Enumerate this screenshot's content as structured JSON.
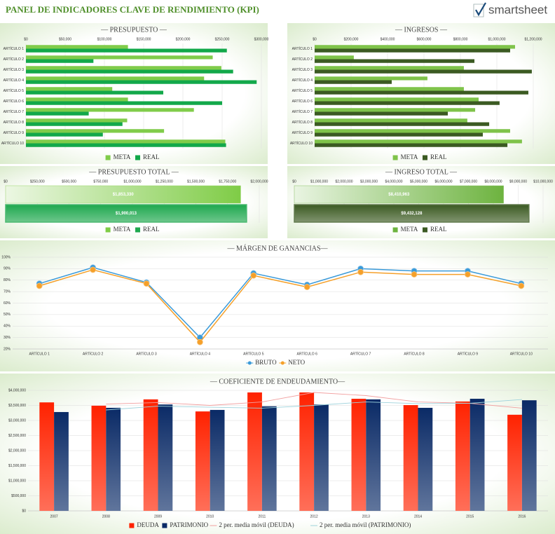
{
  "header": {
    "title": "PANEL DE INDICADORES CLAVE DE RENDIMIENTO (KPI)",
    "logo": "smartsheet"
  },
  "chart_data": [
    {
      "type": "bar",
      "orientation": "horizontal",
      "title": "— PRESUPUESTO —",
      "categories": [
        "ARTÍCULO 1",
        "ARTÍCULO 2",
        "ARTÍCULO 3",
        "ARTÍCULO 4",
        "ARTÍCULO 5",
        "ARTÍCULO 6",
        "ARTÍCULO 7",
        "ARTÍCULO 8",
        "ARTÍCULO 9",
        "ARTÍCULO 10"
      ],
      "series": [
        {
          "name": "META",
          "color": "#80cc4a",
          "values": [
            130000,
            238000,
            249000,
            227000,
            110000,
            130000,
            214000,
            129000,
            176000,
            254000
          ]
        },
        {
          "name": "REAL",
          "color": "#12a84a",
          "values": [
            256000,
            86000,
            264000,
            294000,
            175000,
            250000,
            80000,
            123000,
            98000,
            255000
          ]
        }
      ],
      "xlim": [
        0,
        300000
      ],
      "xticks": [
        {
          "value": 0,
          "label": "$0"
        },
        {
          "value": 50000,
          "label": "$50,000"
        },
        {
          "value": 100000,
          "label": "$100,000"
        },
        {
          "value": 150000,
          "label": "$150,000"
        },
        {
          "value": 200000,
          "label": "$200,000"
        },
        {
          "value": 250000,
          "label": "$250,000"
        },
        {
          "value": 300000,
          "label": "$300,000"
        }
      ],
      "grid": true,
      "legend": "bottom"
    },
    {
      "type": "bar",
      "orientation": "horizontal",
      "title": "— INGRESOS —",
      "categories": [
        "ARTÍCULO 1",
        "ARTÍCULO 2",
        "ARTÍCULO 3",
        "ARTÍCULO 4",
        "ARTÍCULO 5",
        "ARTÍCULO 6",
        "ARTÍCULO 7",
        "ARTÍCULO 8",
        "ARTÍCULO 9",
        "ARTÍCULO 10"
      ],
      "series": [
        {
          "name": "META",
          "color": "#7fc34a",
          "values": [
            1100000,
            215000,
            819000,
            619000,
            819000,
            900000,
            881000,
            838000,
            1073000,
            1138000
          ]
        },
        {
          "name": "REAL",
          "color": "#3b5a22",
          "values": [
            1073000,
            877000,
            1192000,
            423000,
            1173000,
            1015000,
            731000,
            958000,
            923000,
            1058000
          ]
        }
      ],
      "xlim": [
        0,
        1200000
      ],
      "xticks": [
        {
          "value": 0,
          "label": "$0"
        },
        {
          "value": 200000,
          "label": "$200,000"
        },
        {
          "value": 400000,
          "label": "$400,000"
        },
        {
          "value": 600000,
          "label": "$600,000"
        },
        {
          "value": 800000,
          "label": "$800,000"
        },
        {
          "value": 1000000,
          "label": "$1,000,000"
        },
        {
          "value": 1200000,
          "label": "$1,200,000"
        }
      ],
      "grid": true,
      "legend": "bottom"
    },
    {
      "type": "bar",
      "orientation": "horizontal",
      "title": "— PRESUPUESTO TOTAL —",
      "series": [
        {
          "name": "META",
          "color": "#7fcc46",
          "values": [
            1853330
          ],
          "value_labels": [
            "$1,853,330"
          ]
        },
        {
          "name": "REAL",
          "color": "#1ea84e",
          "values": [
            1900013
          ],
          "value_labels": [
            "$1,900,013"
          ]
        }
      ],
      "xlim": [
        0,
        2000000
      ],
      "xticks": [
        {
          "value": 0,
          "label": "$0"
        },
        {
          "value": 250000,
          "label": "$250,000"
        },
        {
          "value": 500000,
          "label": "$500,000"
        },
        {
          "value": 750000,
          "label": "$750,000"
        },
        {
          "value": 1000000,
          "label": "$1,000,000"
        },
        {
          "value": 1250000,
          "label": "$1,250,000"
        },
        {
          "value": 1500000,
          "label": "$1,500,000"
        },
        {
          "value": 1750000,
          "label": "$1,750,000"
        },
        {
          "value": 2000000,
          "label": "$2,000,000"
        }
      ],
      "grid": true,
      "legend": "bottom"
    },
    {
      "type": "bar",
      "orientation": "horizontal",
      "title": "— INGRESO TOTAL —",
      "series": [
        {
          "name": "META",
          "color": "#6db33f",
          "values": [
            8410963
          ],
          "value_labels": [
            "$8,410,963"
          ]
        },
        {
          "name": "REAL",
          "color": "#3b5a22",
          "values": [
            9432128
          ],
          "value_labels": [
            "$9,432,128"
          ]
        }
      ],
      "xlim": [
        0,
        10000000
      ],
      "xticks": [
        {
          "value": 0,
          "label": "$0"
        },
        {
          "value": 1000000,
          "label": "$1,000,000"
        },
        {
          "value": 2000000,
          "label": "$2,000,000"
        },
        {
          "value": 3000000,
          "label": "$3,000,000"
        },
        {
          "value": 4000000,
          "label": "$4,000,000"
        },
        {
          "value": 5000000,
          "label": "$5,000,000"
        },
        {
          "value": 6000000,
          "label": "$6,000,000"
        },
        {
          "value": 7000000,
          "label": "$7,000,000"
        },
        {
          "value": 8000000,
          "label": "$8,000,000"
        },
        {
          "value": 9000000,
          "label": "$9,000,000"
        },
        {
          "value": 10000000,
          "label": "$10,000,000"
        }
      ],
      "grid": true,
      "legend": "bottom"
    },
    {
      "type": "line",
      "title": "— MÁRGEN DE GANANCIAS—",
      "categories": [
        "ARTÍCULO 1",
        "ARTÍCULO 2",
        "ARTÍCULO 3",
        "ARTÍCULO 4",
        "ARTÍCULO 5",
        "ARTÍCULO 6",
        "ARTÍCULO 7",
        "ARTÍCULO 8",
        "ARTÍCULO 9",
        "ARTÍCULO 10"
      ],
      "series": [
        {
          "name": "BRUTO",
          "color": "#3a9ad9",
          "values": [
            77,
            91,
            78,
            30,
            86,
            76,
            90,
            88,
            88,
            77
          ]
        },
        {
          "name": "NETO",
          "color": "#f5a02a",
          "values": [
            75,
            89,
            77,
            26,
            84,
            74,
            87,
            85,
            85,
            75
          ]
        }
      ],
      "ylim": [
        20,
        100
      ],
      "yticks": [
        {
          "value": 20,
          "label": "20%"
        },
        {
          "value": 30,
          "label": "30%"
        },
        {
          "value": 40,
          "label": "40%"
        },
        {
          "value": 50,
          "label": "50%"
        },
        {
          "value": 60,
          "label": "60%"
        },
        {
          "value": 70,
          "label": "70%"
        },
        {
          "value": 80,
          "label": "80%"
        },
        {
          "value": 90,
          "label": "90%"
        },
        {
          "value": 100,
          "label": "100%"
        }
      ],
      "grid": true,
      "legend": "bottom"
    },
    {
      "type": "combo",
      "title": "— COEFICIENTE DE ENDEUDAMIENTO—",
      "categories": [
        "2007",
        "2008",
        "2009",
        "2010",
        "2011",
        "2012",
        "2013",
        "2014",
        "2015",
        "2016"
      ],
      "series": [
        {
          "name": "DEUDA",
          "type": "bar",
          "color": "#ff2200",
          "values": [
            3600000,
            3490000,
            3700000,
            3300000,
            3930000,
            3930000,
            3720000,
            3510000,
            3630000,
            3190000
          ]
        },
        {
          "name": "PATRIMONIO",
          "type": "bar",
          "color": "#0a2a66",
          "values": [
            3280000,
            3420000,
            3530000,
            3350000,
            3470000,
            3530000,
            3700000,
            3420000,
            3720000,
            3670000
          ]
        },
        {
          "name": "2 per. media móvil (DEUDA)",
          "type": "line",
          "color": "#f2a0a0",
          "values": [
            null,
            3545000,
            3595000,
            3500000,
            3615000,
            3930000,
            3825000,
            3615000,
            3570000,
            3410000
          ]
        },
        {
          "name": "2 per. media móvil (PATRIMONIO)",
          "type": "line",
          "color": "#9fd3dc",
          "values": [
            null,
            3350000,
            3475000,
            3440000,
            3410000,
            3500000,
            3615000,
            3560000,
            3570000,
            3695000
          ]
        }
      ],
      "ylim": [
        0,
        4000000
      ],
      "yticks": [
        {
          "value": 0,
          "label": "$0"
        },
        {
          "value": 500000,
          "label": "$500,000"
        },
        {
          "value": 1000000,
          "label": "$1,000,000"
        },
        {
          "value": 1500000,
          "label": "$1,500,000"
        },
        {
          "value": 2000000,
          "label": "$2,000,000"
        },
        {
          "value": 2500000,
          "label": "$2,500,000"
        },
        {
          "value": 3000000,
          "label": "$3,000,000"
        },
        {
          "value": 3500000,
          "label": "$3,500,000"
        },
        {
          "value": 4000000,
          "label": "$4,000,000"
        }
      ],
      "grid": true,
      "legend": "bottom"
    }
  ]
}
